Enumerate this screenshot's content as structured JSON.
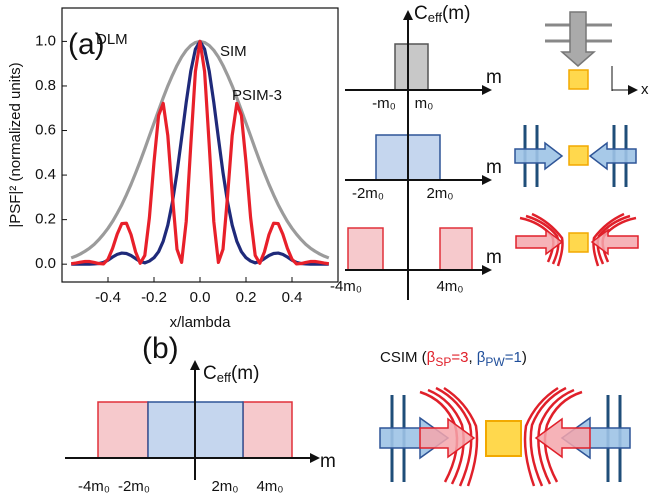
{
  "chart_data": {
    "type": "line",
    "xlabel": "x/lambda",
    "ylabel": "|PSF|² (normalized units)",
    "x": [
      -0.56,
      -0.54,
      -0.52,
      -0.5,
      -0.48,
      -0.46,
      -0.44,
      -0.42,
      -0.4,
      -0.38,
      -0.36,
      -0.34,
      -0.32,
      -0.3,
      -0.28,
      -0.26,
      -0.24,
      -0.22,
      -0.2,
      -0.18,
      -0.16,
      -0.14,
      -0.12,
      -0.1,
      -0.08,
      -0.06,
      -0.04,
      -0.02,
      0,
      0.02,
      0.04,
      0.06,
      0.08,
      0.1,
      0.12,
      0.14,
      0.16,
      0.18,
      0.2,
      0.22,
      0.24,
      0.26,
      0.28,
      0.3,
      0.32,
      0.34,
      0.36,
      0.38,
      0.4,
      0.42,
      0.44,
      0.46,
      0.48,
      0.5,
      0.52,
      0.54,
      0.56
    ],
    "series": [
      {
        "name": "DLM",
        "color": "#9b9b9b",
        "values": [
          0.028,
          0.036,
          0.046,
          0.058,
          0.072,
          0.089,
          0.11,
          0.134,
          0.161,
          0.192,
          0.228,
          0.267,
          0.311,
          0.358,
          0.409,
          0.462,
          0.518,
          0.576,
          0.633,
          0.691,
          0.747,
          0.8,
          0.848,
          0.892,
          0.93,
          0.96,
          0.982,
          0.995,
          1.0,
          0.995,
          0.982,
          0.96,
          0.93,
          0.892,
          0.848,
          0.8,
          0.747,
          0.691,
          0.633,
          0.576,
          0.518,
          0.462,
          0.409,
          0.358,
          0.311,
          0.267,
          0.228,
          0.192,
          0.161,
          0.134,
          0.11,
          0.089,
          0.072,
          0.058,
          0.046,
          0.036,
          0.028
        ]
      },
      {
        "name": "SIM",
        "color": "#1f2a7a",
        "values": [
          0,
          0,
          0,
          0,
          0,
          0.001,
          0.003,
          0.008,
          0.018,
          0.032,
          0.044,
          0.05,
          0.048,
          0.039,
          0.025,
          0.012,
          0.006,
          0.014,
          0.029,
          0.056,
          0.103,
          0.175,
          0.278,
          0.411,
          0.566,
          0.726,
          0.867,
          0.965,
          1.0,
          0.965,
          0.867,
          0.726,
          0.566,
          0.411,
          0.278,
          0.175,
          0.103,
          0.056,
          0.029,
          0.014,
          0.006,
          0.012,
          0.025,
          0.039,
          0.048,
          0.05,
          0.044,
          0.032,
          0.018,
          0.008,
          0.003,
          0.001,
          0,
          0,
          0,
          0,
          0
        ]
      },
      {
        "name": "PSIM-3",
        "color": "#e8202a",
        "values": [
          0.002,
          0.005,
          0.009,
          0.012,
          0.012,
          0.008,
          0.003,
          0.001,
          0.022,
          0.071,
          0.135,
          0.182,
          0.184,
          0.133,
          0.055,
          0.004,
          0.039,
          0.209,
          0.458,
          0.668,
          0.722,
          0.578,
          0.308,
          0.067,
          0.008,
          0.191,
          0.536,
          0.865,
          1.0,
          0.865,
          0.536,
          0.191,
          0.008,
          0.067,
          0.308,
          0.578,
          0.722,
          0.668,
          0.458,
          0.209,
          0.039,
          0.004,
          0.055,
          0.133,
          0.184,
          0.182,
          0.135,
          0.071,
          0.022,
          0.001,
          0.003,
          0.008,
          0.012,
          0.012,
          0.009,
          0.005,
          0.002
        ]
      }
    ],
    "xlim": [
      -0.6,
      0.6
    ],
    "xticks": [
      -0.4,
      -0.2,
      {
        "value": 0,
        "label": "0.0"
      },
      0.2,
      0.4
    ],
    "ylim": [
      -0.08,
      1.15
    ],
    "yticks": [
      {
        "value": 0,
        "label": "0.0"
      },
      0.2,
      0.4,
      0.6,
      0.8,
      {
        "value": 1,
        "label": "1.0"
      }
    ],
    "grid": false
  },
  "panels": {
    "a": "(a)",
    "b": "(b)"
  },
  "diagrams": {
    "ceff": {
      "main": "C",
      "sub": "eff",
      "tail": "(m)"
    },
    "axis": "m",
    "top": [
      "-m₀",
      "m₀"
    ],
    "middle": [
      "-2m₀",
      "2m₀"
    ],
    "bottom": [
      "-4m₀",
      "4m₀"
    ],
    "coord": "x",
    "b_ticks": [
      "-4m₀",
      "-2m₀",
      "2m₀",
      "4m₀"
    ],
    "csim": {
      "prefix": "CSIM (",
      "sp_symbol": "β",
      "sp_sub": "SP",
      "sp_value": "=3",
      "sep": ", ",
      "pw_symbol": "β",
      "pw_sub": "PW",
      "pw_value": "=1",
      "suffix": ")"
    }
  }
}
